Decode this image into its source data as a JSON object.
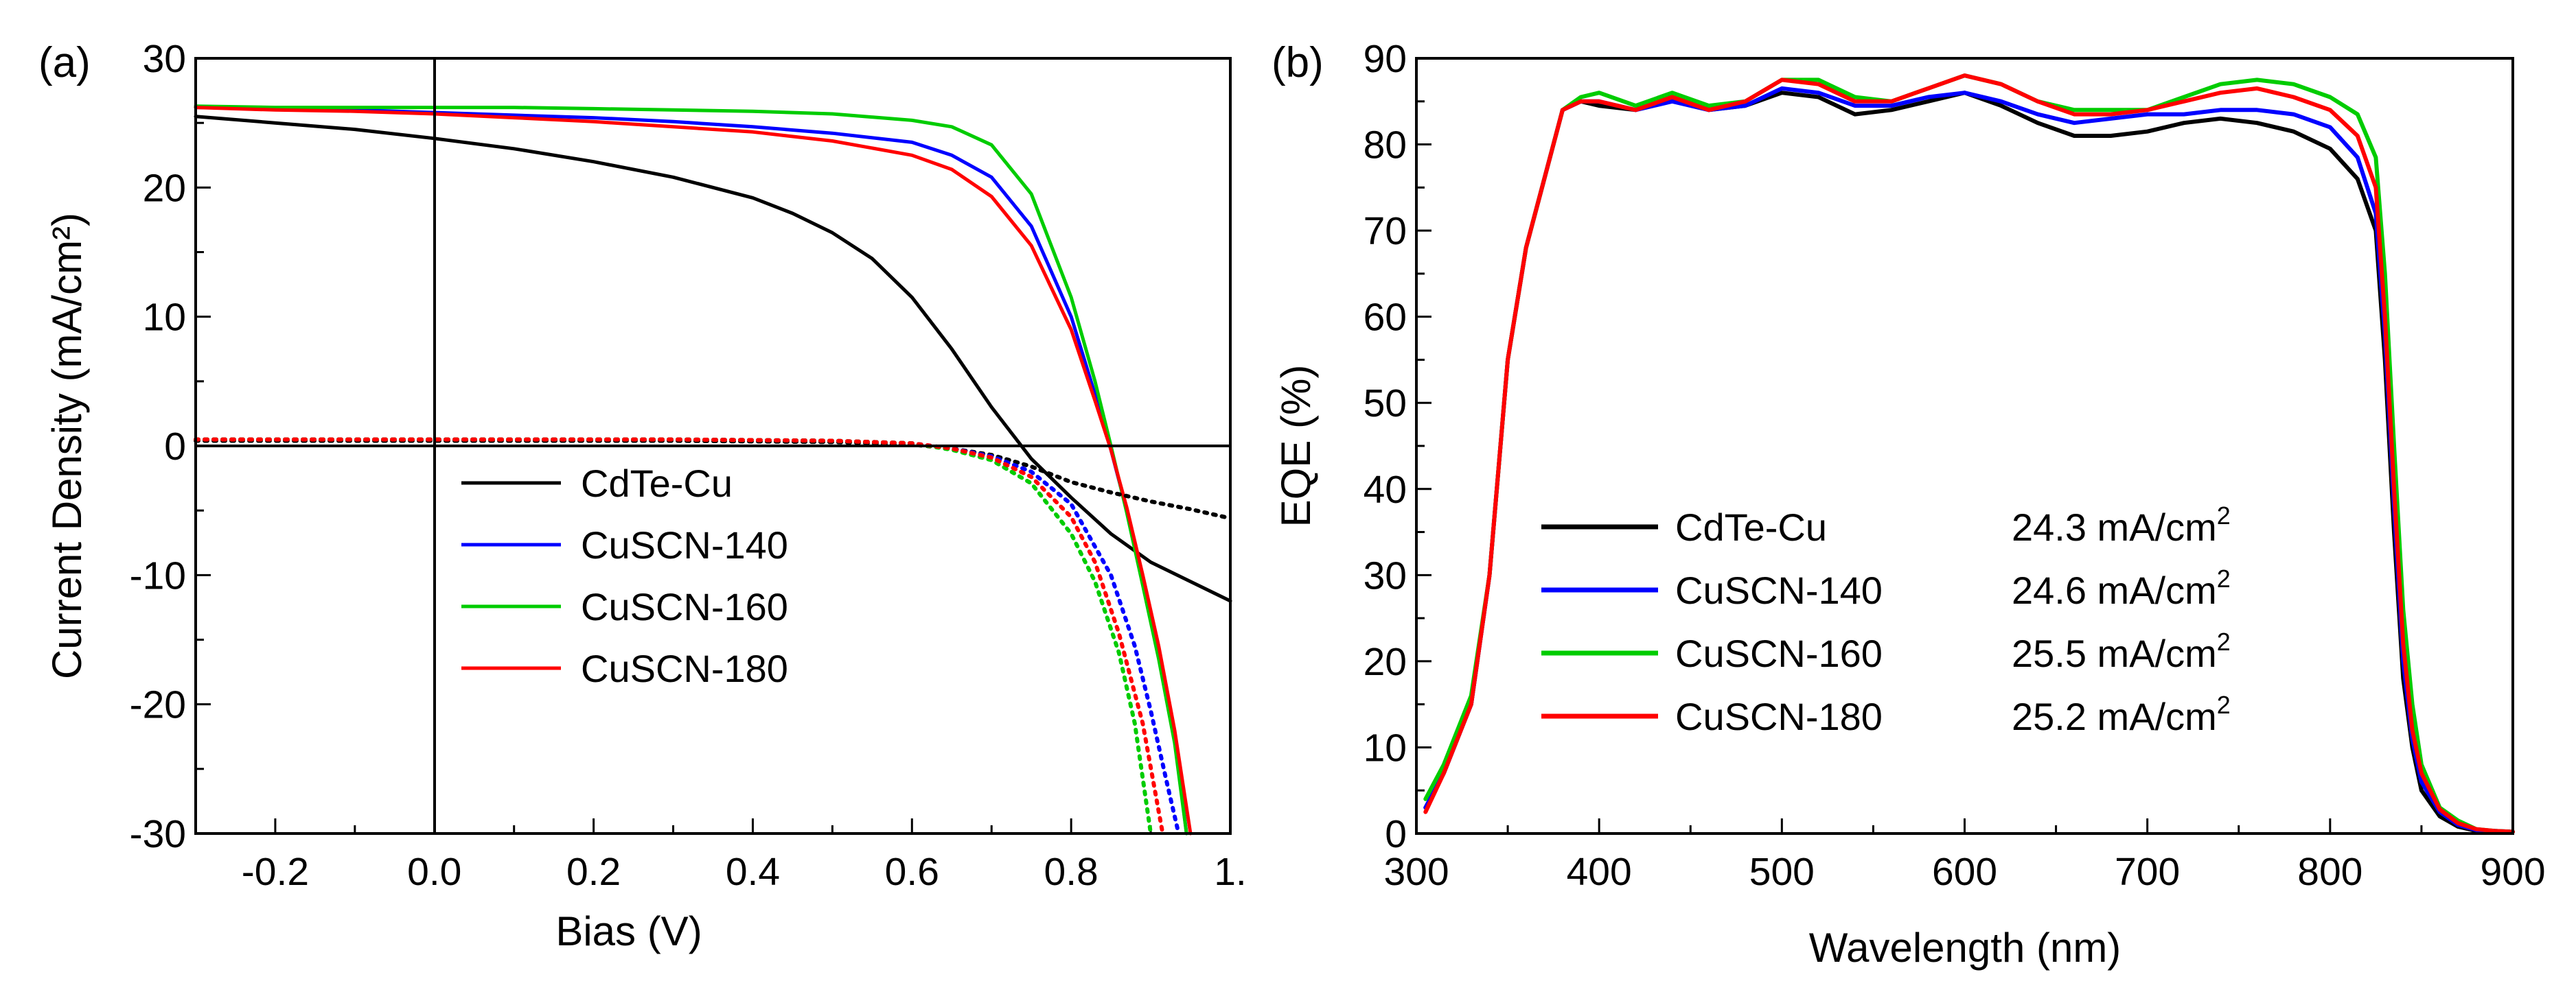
{
  "chart_data": [
    {
      "panel_label": "(a)",
      "type": "line",
      "xlabel": "Bias (V)",
      "ylabel": "Current Density (mA/cm²)",
      "xlim": [
        -0.3,
        1.0
      ],
      "ylim": [
        -30,
        30
      ],
      "x_ticks": [
        -0.2,
        0.0,
        0.2,
        0.4,
        0.6,
        0.8,
        1.0
      ],
      "x_tick_labels": [
        "-0.2",
        "0.0",
        "0.2",
        "0.4",
        "0.6",
        "0.8",
        "1."
      ],
      "y_ticks": [
        30,
        20,
        10,
        0,
        -10,
        -20,
        -30
      ],
      "y_tick_labels": [
        "30",
        "20",
        "10",
        "0",
        "-10",
        "-20",
        "-30"
      ],
      "reference_lines": {
        "x": 0,
        "y": 0
      },
      "legend_position": "center",
      "legend": [
        "CdTe-Cu",
        "CuSCN-140",
        "CuSCN-160",
        "CuSCN-180"
      ],
      "series": [
        {
          "name": "CdTe-Cu",
          "condition": "light",
          "style": "solid",
          "color": "#000000",
          "x": [
            -0.3,
            -0.2,
            -0.1,
            0.0,
            0.1,
            0.2,
            0.3,
            0.4,
            0.45,
            0.5,
            0.55,
            0.6,
            0.65,
            0.7,
            0.75,
            0.8,
            0.85,
            0.9,
            0.95,
            1.0
          ],
          "y": [
            25.5,
            25.0,
            24.5,
            23.8,
            23.0,
            22.0,
            20.8,
            19.2,
            18.0,
            16.5,
            14.5,
            11.5,
            7.5,
            3.0,
            -1.0,
            -4.0,
            -6.8,
            -9.0,
            -10.5,
            -12.0
          ]
        },
        {
          "name": "CuSCN-140",
          "condition": "light",
          "style": "solid",
          "color": "#0000ff",
          "x": [
            -0.3,
            -0.2,
            -0.1,
            0.0,
            0.1,
            0.2,
            0.3,
            0.4,
            0.5,
            0.6,
            0.65,
            0.7,
            0.75,
            0.8,
            0.83,
            0.85,
            0.87,
            0.89,
            0.91,
            0.93,
            0.945
          ],
          "y": [
            26.2,
            26.1,
            26.0,
            25.8,
            25.6,
            25.4,
            25.1,
            24.7,
            24.2,
            23.5,
            22.5,
            20.8,
            17.0,
            10.0,
            4.0,
            -0.3,
            -5.0,
            -10.5,
            -16.0,
            -22.5,
            -30.0
          ]
        },
        {
          "name": "CuSCN-160",
          "condition": "light",
          "style": "solid",
          "color": "#00cc00",
          "x": [
            -0.3,
            -0.2,
            -0.1,
            0.0,
            0.1,
            0.2,
            0.3,
            0.4,
            0.5,
            0.6,
            0.65,
            0.7,
            0.75,
            0.8,
            0.83,
            0.85,
            0.87,
            0.89,
            0.91,
            0.93,
            0.945
          ],
          "y": [
            26.3,
            26.2,
            26.2,
            26.2,
            26.2,
            26.1,
            26.0,
            25.9,
            25.7,
            25.2,
            24.7,
            23.3,
            19.5,
            11.5,
            5.0,
            0.0,
            -5.2,
            -10.8,
            -16.5,
            -23.0,
            -30.0
          ]
        },
        {
          "name": "CuSCN-180",
          "condition": "light",
          "style": "solid",
          "color": "#ff0000",
          "x": [
            -0.3,
            -0.2,
            -0.1,
            0.0,
            0.1,
            0.2,
            0.3,
            0.4,
            0.5,
            0.6,
            0.65,
            0.7,
            0.75,
            0.8,
            0.83,
            0.85,
            0.87,
            0.89,
            0.91,
            0.93,
            0.95
          ],
          "y": [
            26.2,
            26.0,
            25.9,
            25.7,
            25.4,
            25.1,
            24.7,
            24.3,
            23.6,
            22.5,
            21.4,
            19.3,
            15.5,
            9.0,
            3.5,
            -0.3,
            -4.8,
            -10.0,
            -15.5,
            -22.0,
            -30.0
          ]
        },
        {
          "name": "CdTe-Cu",
          "condition": "dark",
          "style": "dotted",
          "color": "#000000",
          "x": [
            -0.3,
            0.0,
            0.3,
            0.5,
            0.6,
            0.65,
            0.7,
            0.75,
            0.8,
            0.85,
            0.9,
            0.95,
            1.0
          ],
          "y": [
            0.4,
            0.4,
            0.4,
            0.3,
            0.1,
            -0.2,
            -0.7,
            -1.6,
            -2.8,
            -3.6,
            -4.3,
            -4.9,
            -5.6
          ]
        },
        {
          "name": "CuSCN-140",
          "condition": "dark",
          "style": "dotted",
          "color": "#0000ff",
          "x": [
            -0.3,
            0.0,
            0.3,
            0.5,
            0.6,
            0.65,
            0.7,
            0.75,
            0.8,
            0.85,
            0.88,
            0.9,
            0.92,
            0.935
          ],
          "y": [
            0.5,
            0.5,
            0.5,
            0.4,
            0.2,
            -0.2,
            -0.8,
            -2.0,
            -4.5,
            -10.0,
            -15.5,
            -20.5,
            -26.0,
            -30.0
          ]
        },
        {
          "name": "CuSCN-160",
          "condition": "dark",
          "style": "dotted",
          "color": "#00cc00",
          "x": [
            -0.3,
            0.0,
            0.3,
            0.5,
            0.6,
            0.65,
            0.7,
            0.75,
            0.8,
            0.83,
            0.86,
            0.88,
            0.9
          ],
          "y": [
            0.5,
            0.5,
            0.5,
            0.4,
            0.2,
            -0.3,
            -1.1,
            -2.9,
            -6.8,
            -10.5,
            -16.0,
            -21.5,
            -30.0
          ]
        },
        {
          "name": "CuSCN-180",
          "condition": "dark",
          "style": "dotted",
          "color": "#ff0000",
          "x": [
            -0.3,
            0.0,
            0.3,
            0.5,
            0.6,
            0.65,
            0.7,
            0.75,
            0.8,
            0.83,
            0.86,
            0.89,
            0.915
          ],
          "y": [
            0.5,
            0.5,
            0.5,
            0.4,
            0.2,
            -0.2,
            -0.9,
            -2.4,
            -5.5,
            -9.0,
            -14.5,
            -21.5,
            -30.0
          ]
        }
      ]
    },
    {
      "panel_label": "(b)",
      "type": "line",
      "xlabel": "Wavelength (nm)",
      "ylabel": "EQE (%)",
      "xlim": [
        300,
        900
      ],
      "ylim": [
        0,
        90
      ],
      "x_ticks": [
        300,
        400,
        500,
        600,
        700,
        800,
        900
      ],
      "x_tick_labels": [
        "300",
        "400",
        "500",
        "600",
        "700",
        "800",
        "900"
      ],
      "y_ticks": [
        0,
        10,
        20,
        30,
        40,
        50,
        60,
        70,
        80,
        90
      ],
      "y_tick_labels": [
        "0",
        "10",
        "20",
        "30",
        "40",
        "50",
        "60",
        "70",
        "80",
        "90"
      ],
      "legend_position": "center-left",
      "legend": [
        "CdTe-Cu",
        "CuSCN-140",
        "CuSCN-160",
        "CuSCN-180"
      ],
      "legend_values": [
        "24.3 mA/cm",
        "24.6 mA/cm",
        "25.5 mA/cm",
        "25.2 mA/cm"
      ],
      "legend_value_superscript": "2",
      "series": [
        {
          "name": "CdTe-Cu",
          "jsc": "24.3 mA/cm²",
          "color": "#000000",
          "x": [
            305,
            315,
            330,
            340,
            350,
            360,
            370,
            380,
            390,
            400,
            420,
            440,
            460,
            480,
            500,
            520,
            540,
            560,
            580,
            600,
            620,
            640,
            660,
            680,
            700,
            720,
            740,
            760,
            780,
            800,
            815,
            825,
            830,
            835,
            840,
            845,
            850,
            860,
            870,
            880,
            890,
            900
          ],
          "y": [
            3,
            7,
            15,
            30,
            55,
            68,
            76,
            84,
            85,
            84.5,
            84.0,
            85.5,
            84.0,
            84.5,
            86.0,
            85.5,
            83.5,
            84.0,
            85.0,
            86.0,
            84.5,
            82.5,
            81.0,
            81.0,
            81.5,
            82.5,
            83.0,
            82.5,
            81.5,
            79.5,
            76.0,
            70.0,
            55.0,
            35.0,
            18.0,
            10.0,
            5.0,
            2.0,
            0.8,
            0.3,
            0.2,
            0.2
          ]
        },
        {
          "name": "CuSCN-140",
          "jsc": "24.6 mA/cm²",
          "color": "#0000ff",
          "x": [
            305,
            315,
            330,
            340,
            350,
            360,
            370,
            380,
            390,
            400,
            420,
            440,
            460,
            480,
            500,
            520,
            540,
            560,
            580,
            600,
            620,
            640,
            660,
            680,
            700,
            720,
            740,
            760,
            780,
            800,
            815,
            825,
            830,
            835,
            840,
            845,
            850,
            860,
            870,
            880,
            890,
            900
          ],
          "y": [
            3,
            7,
            15,
            30,
            55,
            68,
            76,
            84,
            85,
            85.0,
            84.0,
            85.0,
            84.0,
            84.5,
            86.5,
            86.0,
            84.5,
            84.5,
            85.5,
            86.0,
            85.0,
            83.5,
            82.5,
            83.0,
            83.5,
            83.5,
            84.0,
            84.0,
            83.5,
            82.0,
            78.5,
            72.0,
            58.0,
            38.0,
            20.0,
            11.0,
            6.0,
            2.5,
            1.0,
            0.4,
            0.3,
            0.2
          ]
        },
        {
          "name": "CuSCN-160",
          "jsc": "25.5 mA/cm²",
          "color": "#00cc00",
          "x": [
            305,
            315,
            330,
            340,
            350,
            360,
            370,
            380,
            390,
            400,
            420,
            440,
            460,
            480,
            500,
            520,
            540,
            560,
            580,
            600,
            620,
            640,
            660,
            680,
            700,
            720,
            740,
            760,
            780,
            800,
            815,
            825,
            830,
            835,
            840,
            845,
            850,
            860,
            870,
            880,
            890,
            900
          ],
          "y": [
            4,
            8,
            16,
            30,
            55,
            68,
            76,
            84,
            85.5,
            86.0,
            84.5,
            86.0,
            84.5,
            85.0,
            87.5,
            87.5,
            85.5,
            85.0,
            86.5,
            88.0,
            87.0,
            85.0,
            84.0,
            84.0,
            84.0,
            85.5,
            87.0,
            87.5,
            87.0,
            85.5,
            83.5,
            78.5,
            65.0,
            45.0,
            26.0,
            15.0,
            8.0,
            3.0,
            1.5,
            0.5,
            0.3,
            0.2
          ]
        },
        {
          "name": "CuSCN-180",
          "jsc": "25.2 mA/cm²",
          "color": "#ff0000",
          "x": [
            305,
            315,
            330,
            340,
            350,
            360,
            370,
            380,
            390,
            400,
            420,
            440,
            460,
            480,
            500,
            520,
            540,
            560,
            580,
            600,
            620,
            640,
            660,
            680,
            700,
            720,
            740,
            760,
            780,
            800,
            815,
            825,
            830,
            835,
            840,
            845,
            850,
            860,
            870,
            880,
            890,
            900
          ],
          "y": [
            2.5,
            7,
            15,
            30,
            55,
            68,
            76,
            84,
            85,
            85.0,
            84.0,
            85.5,
            84.0,
            85.0,
            87.5,
            87.0,
            85.0,
            85.0,
            86.5,
            88.0,
            87.0,
            85.0,
            83.5,
            83.5,
            84.0,
            85.0,
            86.0,
            86.5,
            85.5,
            84.0,
            81.0,
            75.0,
            60.0,
            40.0,
            22.0,
            12.0,
            7.0,
            2.8,
            1.2,
            0.5,
            0.3,
            0.2
          ]
        }
      ]
    }
  ]
}
